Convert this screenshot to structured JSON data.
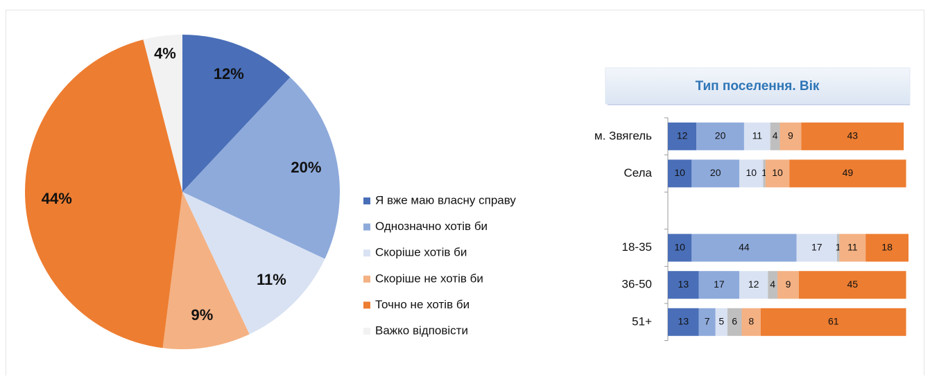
{
  "chart_data": [
    {
      "type": "pie",
      "categories": [
        "Я вже маю власну справу",
        "Однозначно хотів би",
        "Скоріше хотів би",
        "Скоріше не хотів би",
        "Точно не хотів би",
        "Важко відповісти"
      ],
      "values": [
        12,
        20,
        11,
        9,
        44,
        4
      ],
      "value_labels": [
        "12%",
        "20%",
        "11%",
        "9%",
        "44%",
        "4%"
      ],
      "colors": [
        "#4a6fb8",
        "#8eaadb",
        "#d9e2f3",
        "#f4b183",
        "#ed7d31",
        "#f2f2f2"
      ]
    },
    {
      "type": "stacked_barh",
      "title": "Тип поселення. Вік",
      "categories": [
        "м. Звягель",
        "Села",
        null,
        "18-35",
        "36-50",
        "51+"
      ],
      "series": [
        {
          "name": "Я вже маю власну справу",
          "color": "#4a6fb8",
          "values": [
            12,
            10,
            null,
            10,
            13,
            13
          ]
        },
        {
          "name": "Однозначно хотів би",
          "color": "#8eaadb",
          "values": [
            20,
            20,
            null,
            44,
            17,
            7
          ]
        },
        {
          "name": "Скоріше хотів би",
          "color": "#d9e2f3",
          "values": [
            11,
            10,
            null,
            17,
            12,
            5
          ]
        },
        {
          "name": "Важко відповісти",
          "color": "#bfbfbf",
          "values": [
            4,
            1,
            null,
            1,
            4,
            6
          ]
        },
        {
          "name": "Скоріше не хотів би",
          "color": "#f4b183",
          "values": [
            9,
            10,
            null,
            11,
            9,
            8
          ]
        },
        {
          "name": "Точно не хотів би",
          "color": "#ed7d31",
          "values": [
            43,
            49,
            null,
            18,
            45,
            61
          ]
        }
      ]
    }
  ]
}
